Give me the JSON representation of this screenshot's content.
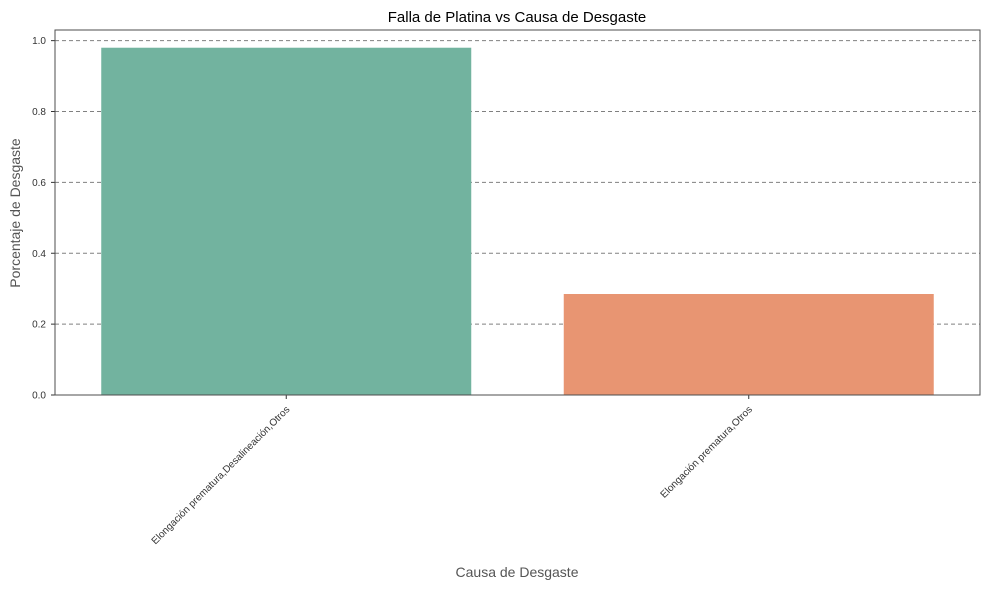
{
  "chart_data": {
    "type": "bar",
    "title": "Falla de Platina vs Causa de Desgaste",
    "xlabel": "Causa de Desgaste",
    "ylabel": "Porcentaje de Desgaste",
    "categories": [
      "Elongación prematura,Desalineación,Otros",
      "Elongación prematura,Otros"
    ],
    "values": [
      0.98,
      0.285
    ],
    "colors": [
      "#72b39f",
      "#e89572"
    ],
    "ylim": [
      0,
      1.03
    ],
    "yticks": [
      "0.0",
      "0.2",
      "0.4",
      "0.6",
      "0.8",
      "1.0"
    ],
    "grid": true,
    "grid_style": "dashed",
    "legend": "none"
  }
}
